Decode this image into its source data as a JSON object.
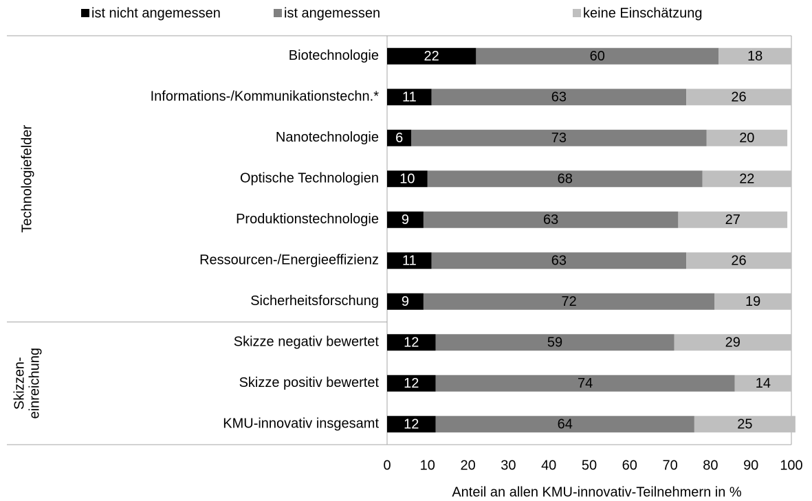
{
  "chart_data": {
    "type": "stacked_barh",
    "categories": [
      "Biotechnologie",
      "Informations-/Kommunikationstechn.*",
      "Nanotechnologie",
      "Optische Technologien",
      "Produktionstechnologie",
      "Ressourcen-/Energieeffizienz",
      "Sicherheitsforschung",
      "Skizze negativ bewertet",
      "Skizze positiv bewertet",
      "KMU-innovativ insgesamt"
    ],
    "groups": [
      {
        "lines": [
          "Technologiefelder"
        ]
      },
      {
        "lines": [
          "Skizzen-",
          "einreichung"
        ]
      }
    ],
    "series": [
      {
        "name": "ist nicht angemessen",
        "color": "#000000",
        "label_color": "#ffffff",
        "values": [
          22,
          11,
          6,
          10,
          9,
          11,
          9,
          12,
          12,
          12
        ]
      },
      {
        "name": "ist angemessen",
        "color": "#808080",
        "label_color": "#000000",
        "values": [
          60,
          63,
          73,
          68,
          63,
          63,
          72,
          59,
          74,
          64
        ]
      },
      {
        "name": "keine Einschätzung",
        "color": "#bfbfbf",
        "label_color": "#000000",
        "values": [
          18,
          26,
          20,
          22,
          27,
          26,
          19,
          29,
          14,
          25
        ]
      }
    ],
    "xlabel": "Anteil an allen KMU-innovativ-Teilnehmern in %",
    "xlim": [
      0,
      100
    ],
    "xticks": [
      0,
      10,
      20,
      30,
      40,
      50,
      60,
      70,
      80,
      90,
      100
    ],
    "legend": "top"
  }
}
